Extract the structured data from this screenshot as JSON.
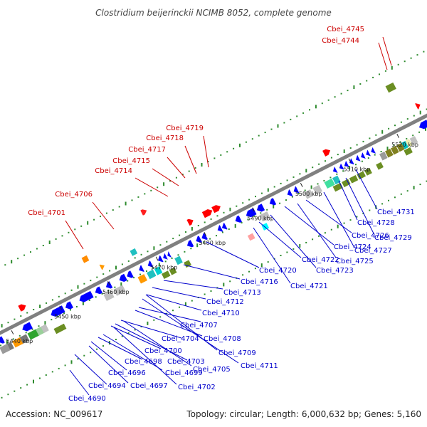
{
  "title": "Clostridium beijerinckii NCIMB 8052, complete genome",
  "footer": {
    "accession": "Accession: NC_009617",
    "summary": "Topology: circular; Length: 6,000,632 bp; Genes: 5,160"
  },
  "colors": {
    "forward_label": "#cc0000",
    "reverse_label": "#0000cc",
    "backbone": "#808080",
    "forward_gene": "#ff0000",
    "reverse_gene": "#0000ff"
  },
  "ticks": [
    "5440 kbp",
    "5450 kbp",
    "5460 kbp",
    "5470 kbp",
    "5480 kbp",
    "5490 kbp",
    "5500 kbp",
    "5510 kbp",
    "5520 kbp"
  ],
  "forward_labels": [
    "Cbei_4701",
    "Cbei_4706",
    "Cbei_4714",
    "Cbei_4715",
    "Cbei_4717",
    "Cbei_4718",
    "Cbei_4719",
    "Cbei_4744",
    "Cbei_4745"
  ],
  "reverse_labels": [
    "Cbei_4690",
    "Cbei_4694",
    "Cbei_4697",
    "Cbei_4696",
    "Cbei_4699",
    "Cbei_4698",
    "Cbei_4702",
    "Cbei_4700",
    "Cbei_4705",
    "Cbei_4703",
    "Cbei_4704",
    "Cbei_4711",
    "Cbei_4709",
    "Cbei_4707",
    "Cbei_4708",
    "Cbei_4710",
    "Cbei_4712",
    "Cbei_4713",
    "Cbei_4716",
    "Cbei_4720",
    "Cbei_4721",
    "Cbei_4722",
    "Cbei_4723",
    "Cbei_4724",
    "Cbei_4725",
    "Cbei_4726",
    "Cbei_4727",
    "Cbei_4728",
    "Cbei_4729",
    "Cbei_4731"
  ]
}
